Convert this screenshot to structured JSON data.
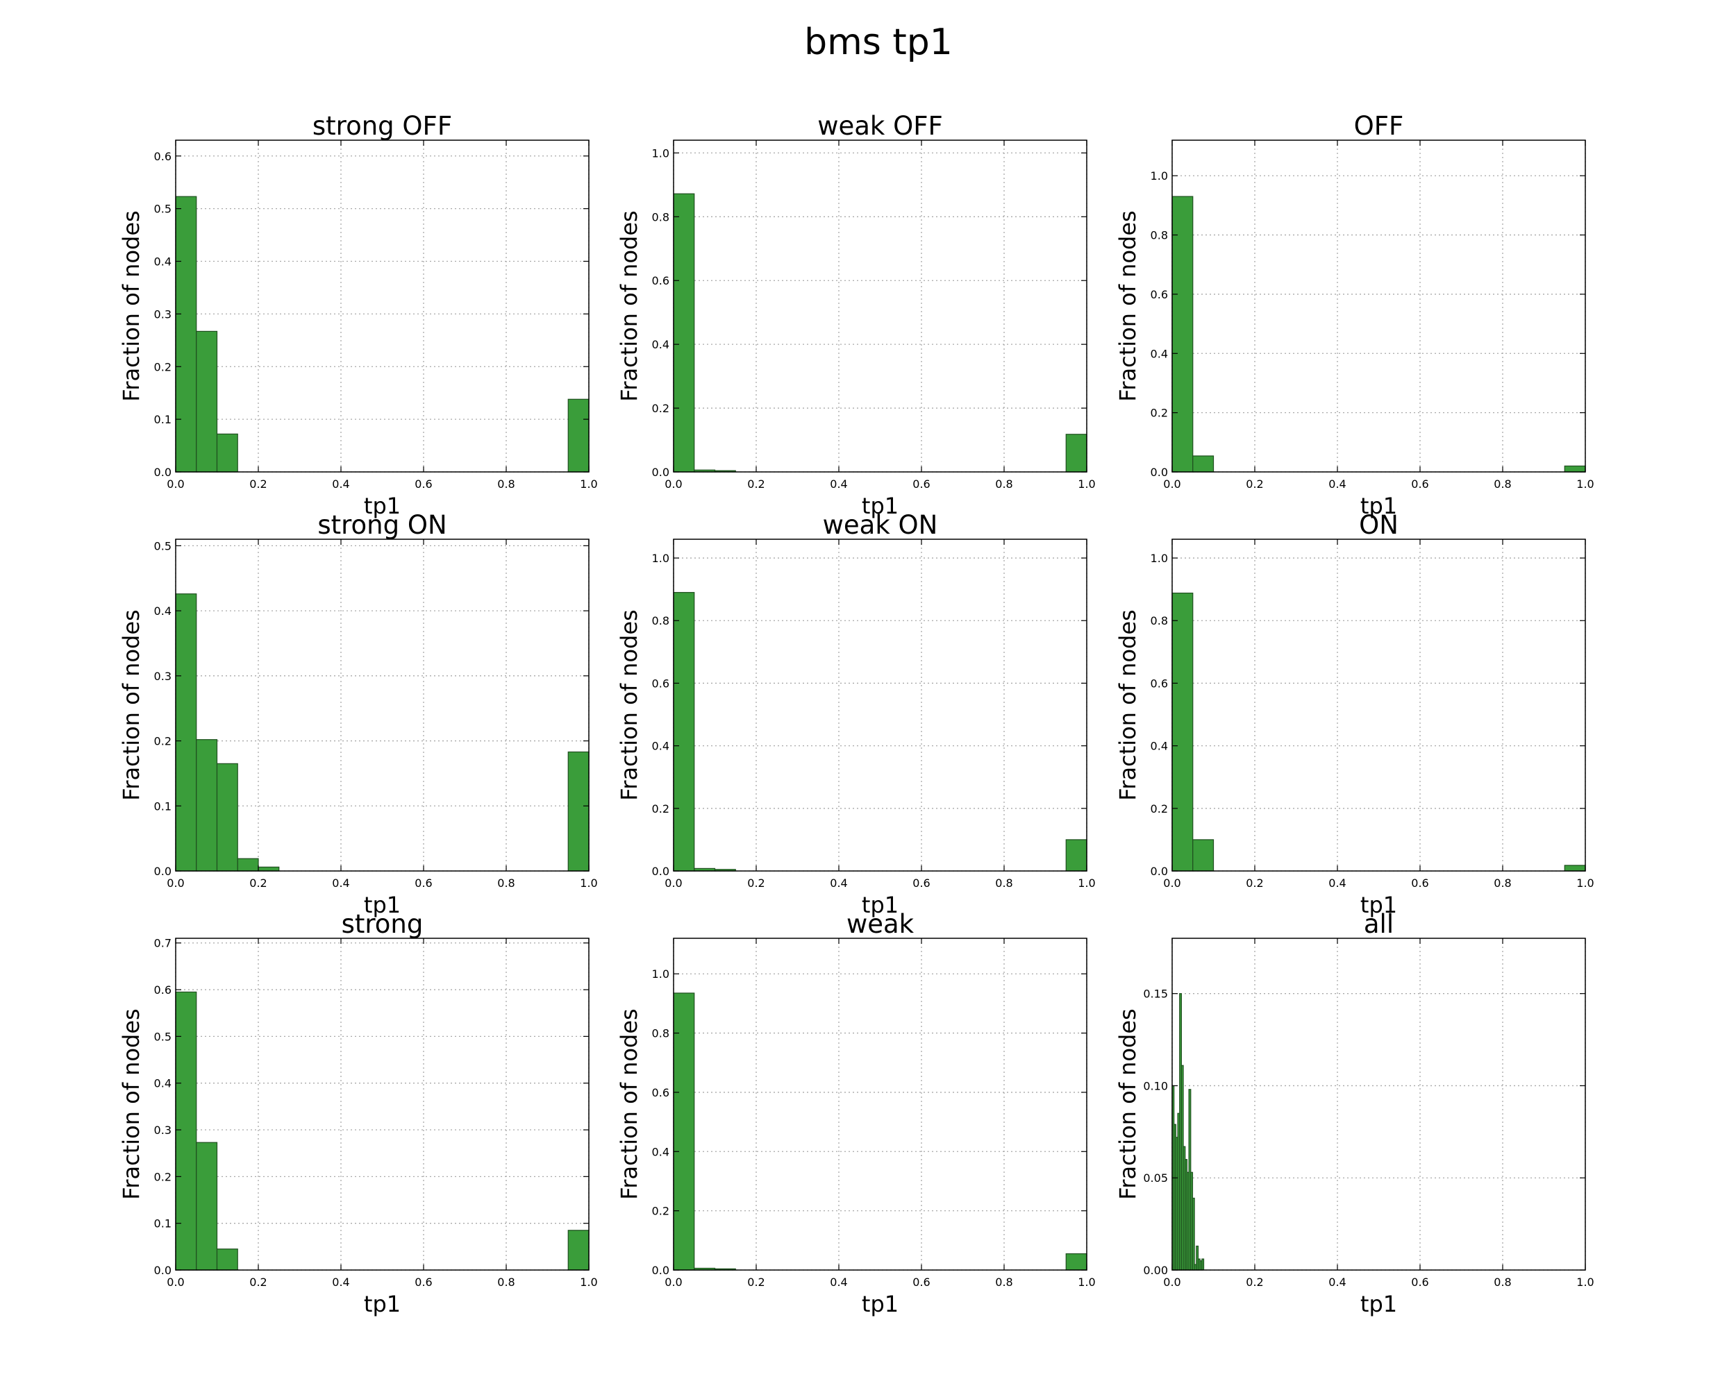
{
  "figure": {
    "suptitle": "bms tp1",
    "bar_color": "#3a9d3a",
    "bar_edge": "#1f4f1f"
  },
  "chart_data": [
    {
      "type": "bar",
      "title": "strong OFF",
      "xlabel": "tp1",
      "ylabel": "Fraction of nodes",
      "xlim": [
        0,
        1
      ],
      "ylim": [
        0,
        0.63
      ],
      "xticks": [
        "0.0",
        "0.2",
        "0.4",
        "0.6",
        "0.8",
        "1.0"
      ],
      "yticks": [
        "0.0",
        "0.1",
        "0.2",
        "0.3",
        "0.4",
        "0.5",
        "0.6"
      ],
      "grid": true,
      "bin_width": 0.05,
      "bins": [
        [
          0.0,
          0.523
        ],
        [
          0.05,
          0.267
        ],
        [
          0.1,
          0.072
        ],
        [
          0.95,
          0.138
        ]
      ]
    },
    {
      "type": "bar",
      "title": "weak OFF",
      "xlabel": "tp1",
      "ylabel": "Fraction of nodes",
      "xlim": [
        0,
        1
      ],
      "ylim": [
        0,
        1.04
      ],
      "xticks": [
        "0.0",
        "0.2",
        "0.4",
        "0.6",
        "0.8",
        "1.0"
      ],
      "yticks": [
        "0.0",
        "0.2",
        "0.4",
        "0.6",
        "0.8",
        "1.0"
      ],
      "grid": true,
      "bin_width": 0.05,
      "bins": [
        [
          0.0,
          0.872
        ],
        [
          0.05,
          0.006
        ],
        [
          0.1,
          0.004
        ],
        [
          0.95,
          0.118
        ]
      ]
    },
    {
      "type": "bar",
      "title": "OFF",
      "xlabel": "tp1",
      "ylabel": "Fraction of nodes",
      "xlim": [
        0,
        1
      ],
      "ylim": [
        0,
        1.12
      ],
      "xticks": [
        "0.0",
        "0.2",
        "0.4",
        "0.6",
        "0.8",
        "1.0"
      ],
      "yticks": [
        "0.0",
        "0.2",
        "0.4",
        "0.6",
        "0.8",
        "1.0"
      ],
      "grid": true,
      "bin_width": 0.05,
      "bins": [
        [
          0.0,
          0.93
        ],
        [
          0.05,
          0.054
        ],
        [
          0.95,
          0.02
        ]
      ]
    },
    {
      "type": "bar",
      "title": "strong ON",
      "xlabel": "tp1",
      "ylabel": "Fraction of nodes",
      "xlim": [
        0,
        1
      ],
      "ylim": [
        0,
        0.51
      ],
      "xticks": [
        "0.0",
        "0.2",
        "0.4",
        "0.6",
        "0.8",
        "1.0"
      ],
      "yticks": [
        "0.0",
        "0.1",
        "0.2",
        "0.3",
        "0.4",
        "0.5"
      ],
      "grid": true,
      "bin_width": 0.05,
      "bins": [
        [
          0.0,
          0.426
        ],
        [
          0.05,
          0.202
        ],
        [
          0.1,
          0.165
        ],
        [
          0.15,
          0.019
        ],
        [
          0.2,
          0.006
        ],
        [
          0.95,
          0.183
        ]
      ]
    },
    {
      "type": "bar",
      "title": "weak ON",
      "xlabel": "tp1",
      "ylabel": "Fraction of nodes",
      "xlim": [
        0,
        1
      ],
      "ylim": [
        0,
        1.06
      ],
      "xticks": [
        "0.0",
        "0.2",
        "0.4",
        "0.6",
        "0.8",
        "1.0"
      ],
      "yticks": [
        "0.0",
        "0.2",
        "0.4",
        "0.6",
        "0.8",
        "1.0"
      ],
      "grid": true,
      "bin_width": 0.05,
      "bins": [
        [
          0.0,
          0.89
        ],
        [
          0.05,
          0.008
        ],
        [
          0.1,
          0.005
        ],
        [
          0.95,
          0.1
        ]
      ]
    },
    {
      "type": "bar",
      "title": "ON",
      "xlabel": "tp1",
      "ylabel": "Fraction of nodes",
      "xlim": [
        0,
        1
      ],
      "ylim": [
        0,
        1.06
      ],
      "xticks": [
        "0.0",
        "0.2",
        "0.4",
        "0.6",
        "0.8",
        "1.0"
      ],
      "yticks": [
        "0.0",
        "0.2",
        "0.4",
        "0.6",
        "0.8",
        "1.0"
      ],
      "grid": true,
      "bin_width": 0.05,
      "bins": [
        [
          0.0,
          0.888
        ],
        [
          0.05,
          0.1
        ],
        [
          0.95,
          0.018
        ]
      ]
    },
    {
      "type": "bar",
      "title": "strong",
      "xlabel": "tp1",
      "ylabel": "Fraction of nodes",
      "xlim": [
        0,
        1
      ],
      "ylim": [
        0,
        0.71
      ],
      "xticks": [
        "0.0",
        "0.2",
        "0.4",
        "0.6",
        "0.8",
        "1.0"
      ],
      "yticks": [
        "0.0",
        "0.1",
        "0.2",
        "0.3",
        "0.4",
        "0.5",
        "0.6",
        "0.7"
      ],
      "grid": true,
      "bin_width": 0.05,
      "bins": [
        [
          0.0,
          0.595
        ],
        [
          0.05,
          0.273
        ],
        [
          0.1,
          0.045
        ],
        [
          0.95,
          0.085
        ]
      ]
    },
    {
      "type": "bar",
      "title": "weak",
      "xlabel": "tp1",
      "ylabel": "Fraction of nodes",
      "xlim": [
        0,
        1
      ],
      "ylim": [
        0,
        1.12
      ],
      "xticks": [
        "0.0",
        "0.2",
        "0.4",
        "0.6",
        "0.8",
        "1.0"
      ],
      "yticks": [
        "0.0",
        "0.2",
        "0.4",
        "0.6",
        "0.8",
        "1.0"
      ],
      "grid": true,
      "bin_width": 0.05,
      "bins": [
        [
          0.0,
          0.935
        ],
        [
          0.05,
          0.006
        ],
        [
          0.1,
          0.004
        ],
        [
          0.95,
          0.055
        ]
      ]
    },
    {
      "type": "bar",
      "title": "all",
      "xlabel": "tp1",
      "ylabel": "Fraction of nodes",
      "xlim": [
        0,
        1
      ],
      "ylim": [
        0,
        0.18
      ],
      "xticks": [
        "0.0",
        "0.2",
        "0.4",
        "0.6",
        "0.8",
        "1.0"
      ],
      "yticks": [
        "0.00",
        "0.05",
        "0.10",
        "0.15"
      ],
      "grid": true,
      "bin_width": 0.0045,
      "bins": [
        [
          0.0,
          0.1
        ],
        [
          0.0045,
          0.079
        ],
        [
          0.009,
          0.072
        ],
        [
          0.0135,
          0.085
        ],
        [
          0.018,
          0.15
        ],
        [
          0.0225,
          0.111
        ],
        [
          0.027,
          0.067
        ],
        [
          0.0315,
          0.06
        ],
        [
          0.036,
          0.053
        ],
        [
          0.0405,
          0.098
        ],
        [
          0.045,
          0.053
        ],
        [
          0.0495,
          0.039
        ],
        [
          0.054,
          0.003
        ],
        [
          0.0585,
          0.013
        ],
        [
          0.063,
          0.006
        ],
        [
          0.0675,
          0.005
        ],
        [
          0.072,
          0.006
        ]
      ]
    }
  ]
}
